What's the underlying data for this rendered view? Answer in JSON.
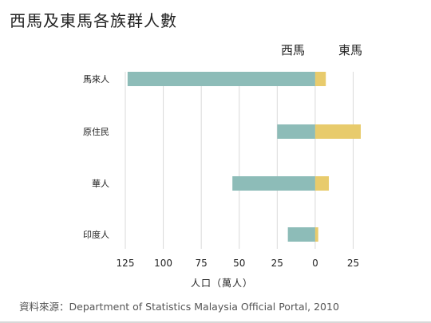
{
  "chart_data": {
    "type": "bar",
    "orientation": "horizontal-diverging",
    "title": "西馬及東馬各族群人數",
    "xlabel": "人口（萬人）",
    "ylabel": "",
    "side_labels": {
      "left": "西馬",
      "right": "東馬"
    },
    "categories": [
      "馬來人",
      "原住民",
      "華人",
      "印度人"
    ],
    "series": [
      {
        "name": "西馬",
        "color": "#8dbcb8",
        "values": [
          123.5,
          25,
          54.5,
          18
        ]
      },
      {
        "name": "東馬",
        "color": "#e8cb6c",
        "values": [
          7,
          30,
          9,
          2
        ]
      }
    ],
    "xlim": [
      -125,
      30
    ],
    "ticks": [
      {
        "value": -125,
        "label": "125"
      },
      {
        "value": -100,
        "label": "100"
      },
      {
        "value": -75,
        "label": "75"
      },
      {
        "value": -50,
        "label": "50"
      },
      {
        "value": -25,
        "label": "25"
      },
      {
        "value": 0,
        "label": "0"
      },
      {
        "value": 25,
        "label": "25"
      }
    ],
    "grid": true,
    "source": "資料來源：Department of Statistics Malaysia Official Portal, 2010"
  }
}
